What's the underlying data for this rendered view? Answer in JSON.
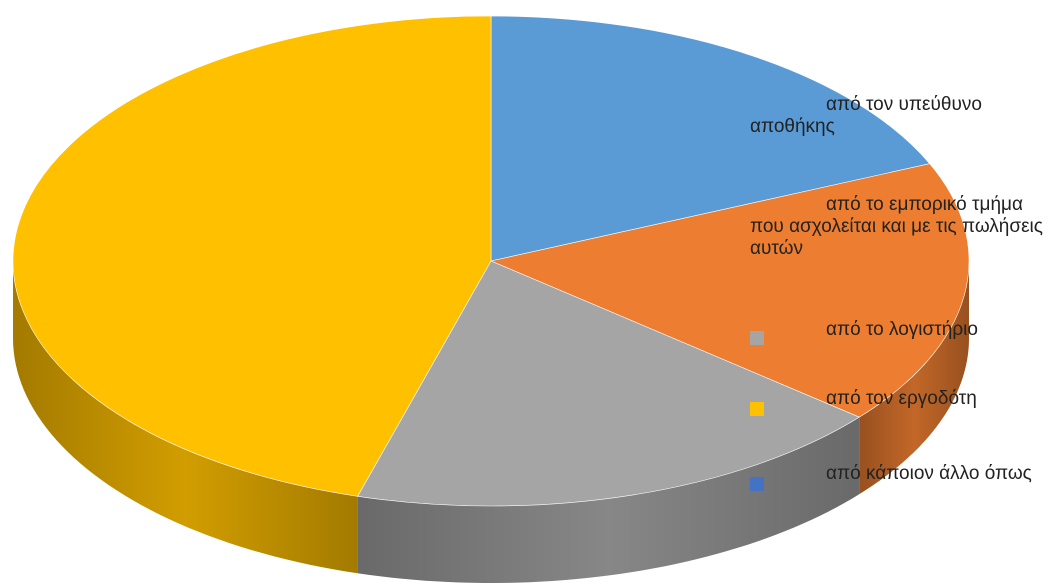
{
  "chart_data": {
    "type": "pie",
    "title": "",
    "categories": [
      "από τον υπεύθυνο αποθήκης",
      "από το εμπορικό τμήμα που ασχολείται και με τις πωλήσεις αυτών",
      "από το λογιστήριο",
      "από τον εργοδότη",
      "από κάποιον άλλο όπως"
    ],
    "values": [
      18.5,
      17.5,
      18.5,
      45.5,
      0
    ],
    "colors": [
      "#5B9BD5",
      "#ED7D31",
      "#A5A5A5",
      "#FFC000",
      "#4472C4"
    ],
    "legend_position": "right",
    "style": "3d"
  }
}
